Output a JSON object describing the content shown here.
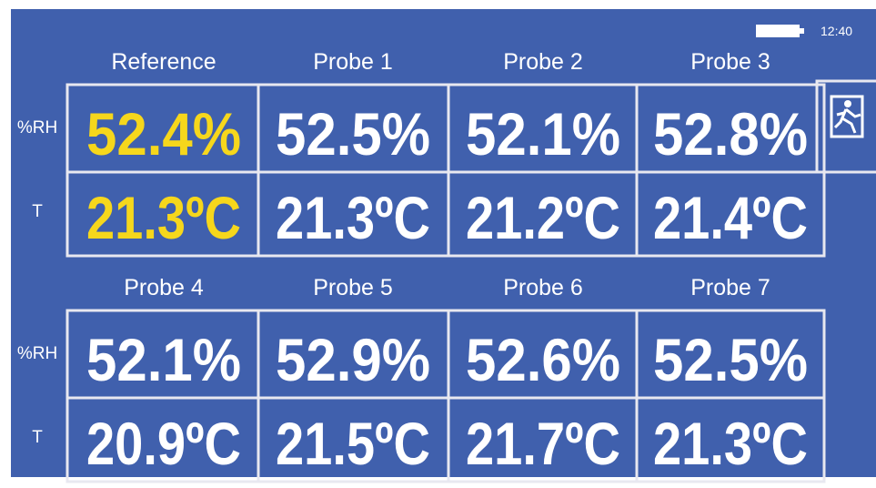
{
  "status": {
    "time": "12:40"
  },
  "groups": [
    {
      "headers": [
        "Reference",
        "Probe 1",
        "Probe 2",
        "Probe 3"
      ],
      "rows": [
        {
          "label": "%RH",
          "values": [
            "52.4%",
            "52.5%",
            "52.1%",
            "52.8%"
          ]
        },
        {
          "label": "T",
          "values": [
            "21.3ºC",
            "21.3ºC",
            "21.2ºC",
            "21.4ºC"
          ]
        }
      ]
    },
    {
      "headers": [
        "Probe 4",
        "Probe 5",
        "Probe 6",
        "Probe 7"
      ],
      "rows": [
        {
          "label": "%RH",
          "values": [
            "52.1%",
            "52.9%",
            "52.6%",
            "52.5%"
          ]
        },
        {
          "label": "T",
          "values": [
            "20.9ºC",
            "21.5ºC",
            "21.7ºC",
            "21.3ºC"
          ]
        }
      ]
    }
  ]
}
